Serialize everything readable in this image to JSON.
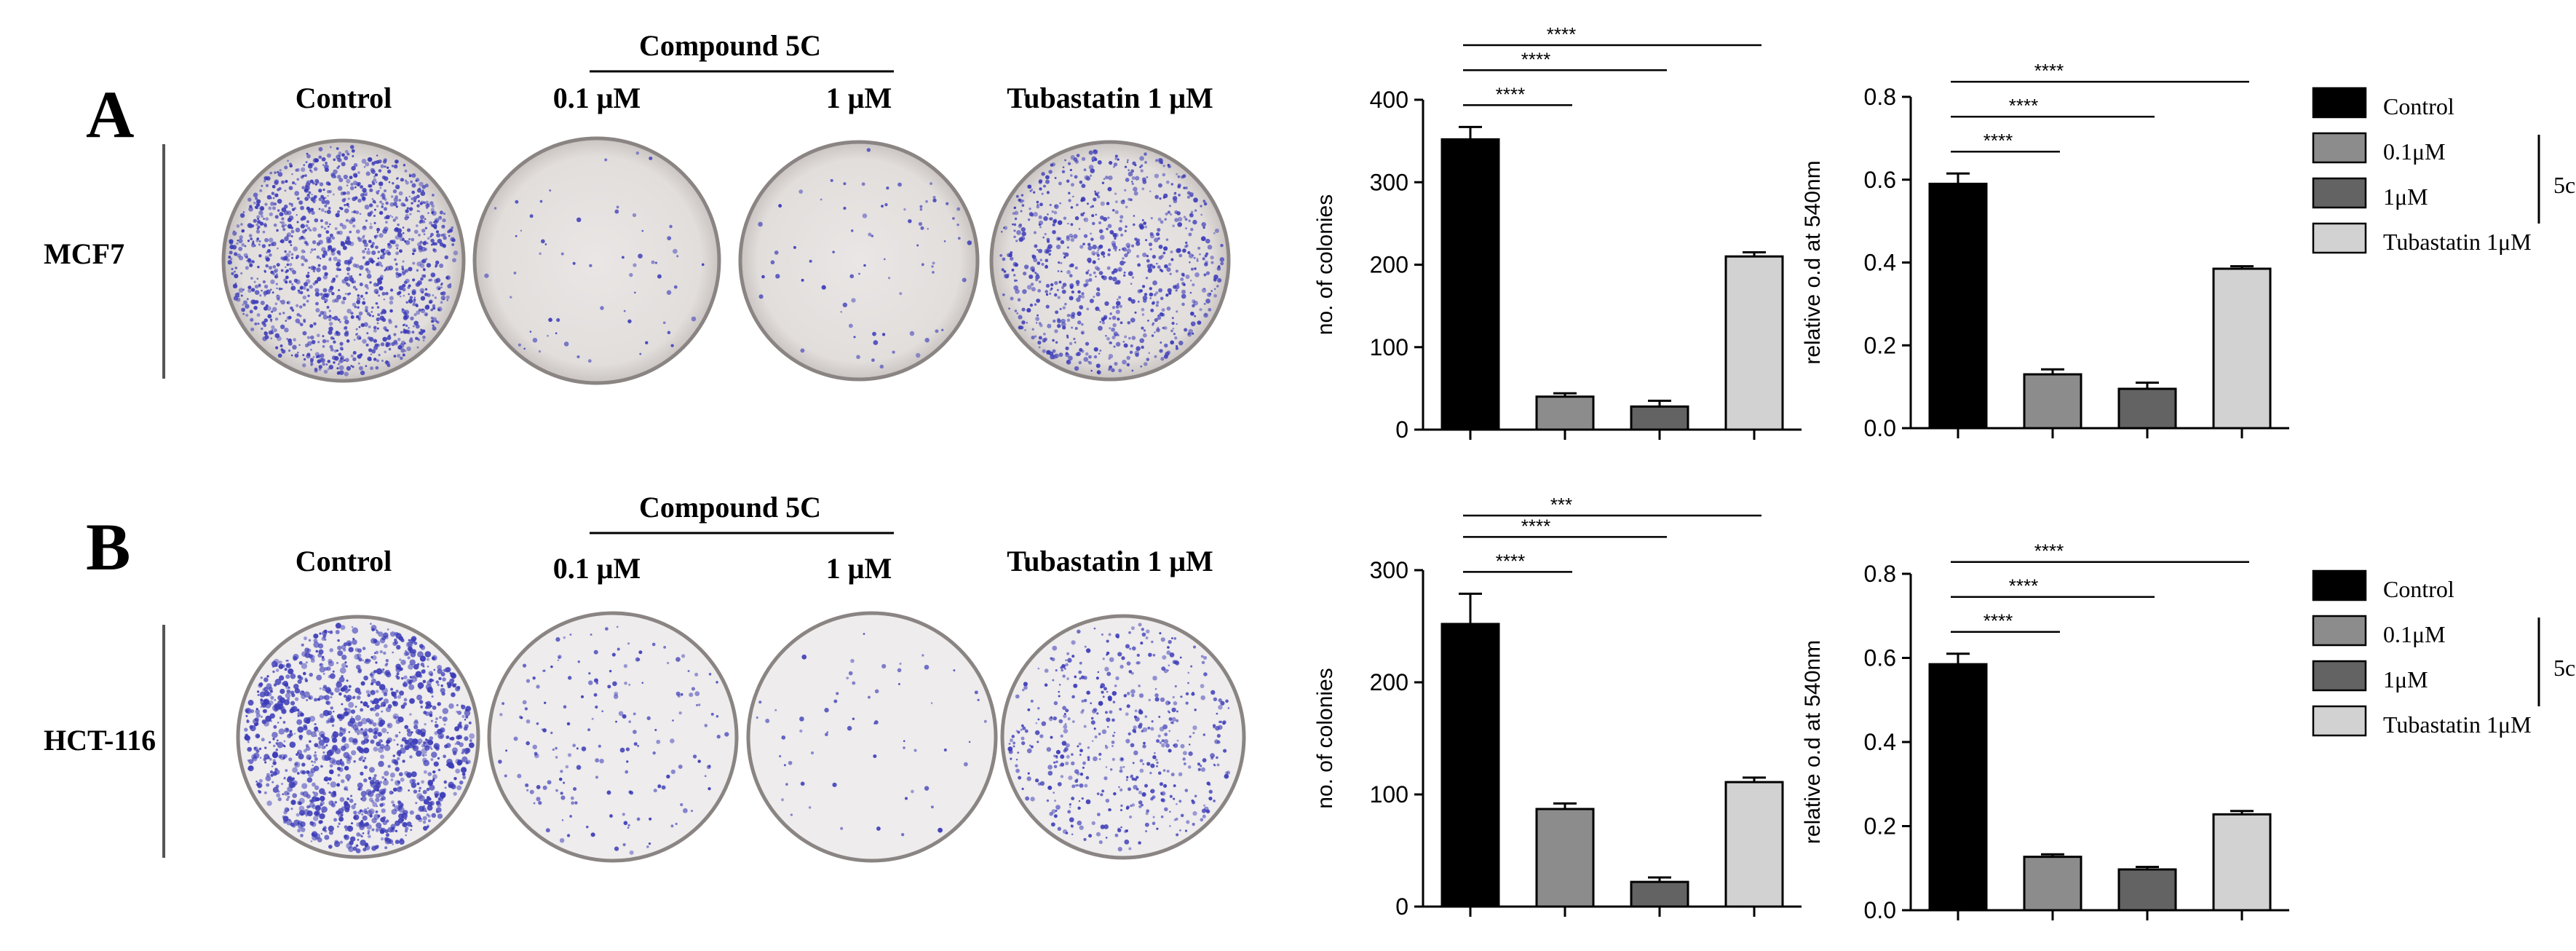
{
  "panels": [
    {
      "label": "A",
      "cell_line": "MCF7",
      "compound_header": "Compound 5C",
      "plate_labels": [
        "Control",
        "0.1 μM",
        "1 μM",
        "Tubastatin 1 μM"
      ],
      "plate_density": [
        0.9,
        0.04,
        0.05,
        0.55
      ]
    },
    {
      "label": "B",
      "cell_line": "HCT-116",
      "compound_header": "Compound 5C",
      "plate_labels": [
        "Control",
        "0.1 μM",
        "1 μM",
        "Tubastatin 1 μM"
      ],
      "plate_density": [
        0.85,
        0.12,
        0.04,
        0.35
      ]
    }
  ],
  "colors": {
    "control": "#000000",
    "c01": "#8c8c8c",
    "c1": "#636363",
    "tubastatin": "#d2d2d2",
    "stain": "#3b3bb8",
    "plate_bg": "#e4e0df"
  },
  "legend": {
    "items": [
      "Control",
      "0.1μM",
      "1μM",
      "Tubastatin 1μM"
    ],
    "group_label": "5c"
  },
  "chart_data": [
    {
      "type": "bar",
      "panel": "A",
      "categories": [
        "Control",
        "0.1μM",
        "1μM",
        "Tubastatin 1μM"
      ],
      "values": [
        352,
        40,
        28,
        210
      ],
      "errors": [
        15,
        4,
        7,
        5
      ],
      "ylabel": "no. of colonies",
      "ylim": [
        0,
        400
      ],
      "yticks": [
        "0",
        "100",
        "200",
        "300",
        "400"
      ],
      "significance": [
        {
          "from": 0,
          "to": 1,
          "label": "****"
        },
        {
          "from": 0,
          "to": 2,
          "label": "****"
        },
        {
          "from": 0,
          "to": 3,
          "label": "****"
        }
      ]
    },
    {
      "type": "bar",
      "panel": "A",
      "categories": [
        "Control",
        "0.1μM",
        "1μM",
        "Tubastatin 1μM"
      ],
      "values": [
        0.59,
        0.13,
        0.095,
        0.385
      ],
      "errors": [
        0.025,
        0.012,
        0.015,
        0.006
      ],
      "ylabel": "relative o.d at 540nm",
      "ylim": [
        0,
        0.8
      ],
      "yticks": [
        "0.0",
        "0.2",
        "0.4",
        "0.6",
        "0.8"
      ],
      "significance": [
        {
          "from": 0,
          "to": 1,
          "label": "****"
        },
        {
          "from": 0,
          "to": 2,
          "label": "****"
        },
        {
          "from": 0,
          "to": 3,
          "label": "****"
        }
      ]
    },
    {
      "type": "bar",
      "panel": "B",
      "categories": [
        "Control",
        "0.1μM",
        "1μM",
        "Tubastatin 1μM"
      ],
      "values": [
        252,
        87,
        22,
        111
      ],
      "errors": [
        27,
        5,
        4,
        4
      ],
      "ylabel": "no. of colonies",
      "ylim": [
        0,
        300
      ],
      "yticks": [
        "0",
        "100",
        "200",
        "300"
      ],
      "significance": [
        {
          "from": 0,
          "to": 1,
          "label": "****"
        },
        {
          "from": 0,
          "to": 2,
          "label": "****"
        },
        {
          "from": 0,
          "to": 3,
          "label": "***"
        }
      ]
    },
    {
      "type": "bar",
      "panel": "B",
      "categories": [
        "Control",
        "0.1μM",
        "1μM",
        "Tubastatin 1μM"
      ],
      "values": [
        0.585,
        0.127,
        0.097,
        0.228
      ],
      "errors": [
        0.025,
        0.006,
        0.006,
        0.008
      ],
      "ylabel": "relative o.d at 540nm",
      "ylim": [
        0,
        0.8
      ],
      "yticks": [
        "0.0",
        "0.2",
        "0.4",
        "0.6",
        "0.8"
      ],
      "significance": [
        {
          "from": 0,
          "to": 1,
          "label": "****"
        },
        {
          "from": 0,
          "to": 2,
          "label": "****"
        },
        {
          "from": 0,
          "to": 3,
          "label": "****"
        }
      ]
    }
  ]
}
